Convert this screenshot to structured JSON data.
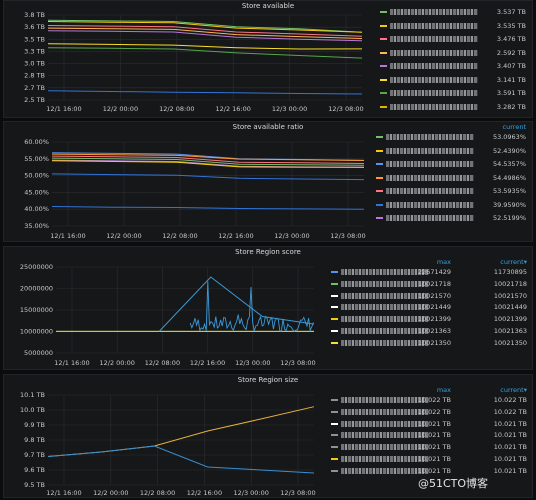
{
  "panels": [
    {
      "title": "Store available",
      "y_ticks": [
        "3.8 TB",
        "3.6 TB",
        "3.5 TB",
        "3.3 TB",
        "3.0 TB",
        "2.8 TB",
        "2.7 TB",
        "2.5 TB"
      ],
      "x_ticks": [
        "12/1 16:00",
        "12/2 00:00",
        "12/2 08:00",
        "12/2 16:00",
        "12/3 00:00",
        "12/3 08:00"
      ],
      "legend_header": [],
      "legend": [
        {
          "color": "#73bf69",
          "values": [
            "3.537 TB"
          ]
        },
        {
          "color": "#f2cc0c",
          "values": [
            "3.535 TB"
          ]
        },
        {
          "color": "#ff7383",
          "values": [
            "3.476 TB"
          ]
        },
        {
          "color": "#ffb357",
          "values": [
            "2.592 TB"
          ]
        },
        {
          "color": "#b877d9",
          "values": [
            "3.407 TB"
          ]
        },
        {
          "color": "#fade2a",
          "values": [
            "3.141 TB"
          ]
        },
        {
          "color": "#56a64b",
          "values": [
            "3.591 TB"
          ]
        },
        {
          "color": "#e0b400",
          "values": [
            "3.282 TB"
          ]
        }
      ]
    },
    {
      "title": "Store available ratio",
      "y_ticks": [
        "60.00%",
        "55.00%",
        "50.00%",
        "45.00%",
        "40.00%",
        "35.00%"
      ],
      "x_ticks": [
        "12/1 16:00",
        "12/2 00:00",
        "12/2 08:00",
        "12/2 16:00",
        "12/3 00:00",
        "12/3 08:00"
      ],
      "legend_header": [
        "current"
      ],
      "legend": [
        {
          "color": "#73bf69",
          "values": [
            "53.0963%"
          ]
        },
        {
          "color": "#f2cc0c",
          "values": [
            "52.4390%"
          ]
        },
        {
          "color": "#5794f2",
          "values": [
            "54.5357%"
          ]
        },
        {
          "color": "#ff9830",
          "values": [
            "54.4986%"
          ]
        },
        {
          "color": "#ff7383",
          "values": [
            "53.5935%"
          ]
        },
        {
          "color": "#3274d9",
          "values": [
            "39.9590%"
          ]
        },
        {
          "color": "#b877d9",
          "values": [
            "52.5199%"
          ]
        }
      ]
    },
    {
      "title": "Store Region score",
      "y_ticks": [
        "25000000",
        "20000000",
        "15000000",
        "10000000",
        "5000000"
      ],
      "x_ticks": [
        "12/1 16:00",
        "12/2 00:00",
        "12/2 08:00",
        "12/2 16:00",
        "12/3 00:00",
        "12/3 08:00"
      ],
      "legend_header": [
        "max",
        "current▾"
      ],
      "legend": [
        {
          "color": "#5794f2",
          "values": [
            "22671429",
            "11730895"
          ]
        },
        {
          "color": "#73bf69",
          "values": [
            "10021718",
            "10021718"
          ]
        },
        {
          "color": "#ffffff",
          "values": [
            "10021570",
            "10021570"
          ]
        },
        {
          "color": "#ffffff",
          "values": [
            "10021449",
            "10021449"
          ]
        },
        {
          "color": "#f2cc0c",
          "values": [
            "10021399",
            "10021399"
          ]
        },
        {
          "color": "#ffffff",
          "values": [
            "10021363",
            "10021363"
          ]
        },
        {
          "color": "#fade2a",
          "values": [
            "10021350",
            "10021350"
          ]
        }
      ]
    },
    {
      "title": "Store Region size",
      "y_ticks": [
        "10.1 TB",
        "10.0 TB",
        "9.9 TB",
        "9.8 TB",
        "9.7 TB",
        "9.6 TB",
        "9.5 TB"
      ],
      "x_ticks": [
        "12/1 16:00",
        "12/2 00:00",
        "12/2 08:00",
        "12/2 16:00",
        "12/3 00:00",
        "12/3 08:00"
      ],
      "legend_header": [
        "max",
        "current▾"
      ],
      "legend": [
        {
          "color": "#8f9295",
          "values": [
            "10.022 TB",
            "10.022 TB"
          ]
        },
        {
          "color": "#8f9295",
          "values": [
            "10.022 TB",
            "10.022 TB"
          ]
        },
        {
          "color": "#ffffff",
          "values": [
            "10.021 TB",
            "10.021 TB"
          ]
        },
        {
          "color": "#8f9295",
          "values": [
            "10.021 TB",
            "10.021 TB"
          ]
        },
        {
          "color": "#8f9295",
          "values": [
            "10.021 TB",
            "10.021 TB"
          ]
        },
        {
          "color": "#f2cc0c",
          "values": [
            "10.021 TB",
            "10.021 TB"
          ]
        },
        {
          "color": "#8f9295",
          "values": [
            "10.021 TB",
            "10.021 TB"
          ]
        }
      ]
    }
  ],
  "watermark": "@51CTO博客",
  "chart_data": [
    {
      "type": "line",
      "title": "Store available",
      "x": [
        "12/1 16:00",
        "12/2 00:00",
        "12/2 08:00",
        "12/2 16:00",
        "12/3 00:00",
        "12/3 08:00"
      ],
      "ylim": [
        2.5,
        3.8
      ],
      "series": [
        {
          "values": [
            3.72,
            3.71,
            3.7,
            3.62,
            3.59,
            3.537
          ]
        },
        {
          "values": [
            3.7,
            3.69,
            3.68,
            3.6,
            3.57,
            3.535
          ]
        },
        {
          "values": [
            3.64,
            3.63,
            3.62,
            3.54,
            3.51,
            3.476
          ]
        },
        {
          "values": [
            3.6,
            3.59,
            3.58,
            3.5,
            3.47,
            3.44
          ]
        },
        {
          "values": [
            3.56,
            3.55,
            3.54,
            3.46,
            3.43,
            3.407
          ]
        },
        {
          "values": [
            3.36,
            3.35,
            3.34,
            3.3,
            3.28,
            3.282
          ]
        },
        {
          "values": [
            3.3,
            3.29,
            3.28,
            3.22,
            3.18,
            3.141
          ]
        },
        {
          "values": [
            2.64,
            2.63,
            2.62,
            2.61,
            2.6,
            2.592
          ]
        }
      ]
    },
    {
      "type": "line",
      "title": "Store available ratio",
      "x": [
        "12/1 16:00",
        "12/2 00:00",
        "12/2 08:00",
        "12/2 16:00",
        "12/3 00:00",
        "12/3 08:00"
      ],
      "ylim": [
        35,
        60
      ],
      "series": [
        {
          "values": [
            56.8,
            56.6,
            56.4,
            55.0,
            54.8,
            54.5357
          ]
        },
        {
          "values": [
            56.4,
            56.2,
            56.0,
            54.9,
            54.7,
            54.4986
          ]
        },
        {
          "values": [
            55.8,
            55.6,
            55.4,
            54.0,
            53.8,
            53.5935
          ]
        },
        {
          "values": [
            55.2,
            55.0,
            54.8,
            53.4,
            53.2,
            53.0963
          ]
        },
        {
          "values": [
            54.6,
            54.4,
            54.2,
            52.8,
            52.6,
            52.5199
          ]
        },
        {
          "values": [
            54.4,
            54.2,
            54.0,
            52.6,
            52.5,
            52.439
          ]
        },
        {
          "values": [
            50.5,
            50.3,
            50.1,
            49.2,
            49.0,
            48.8
          ]
        },
        {
          "values": [
            40.8,
            40.6,
            40.5,
            40.2,
            40.1,
            39.959
          ]
        }
      ]
    },
    {
      "type": "line",
      "title": "Store Region score",
      "x": [
        "12/1 16:00",
        "12/2 00:00",
        "12/2 08:00",
        "12/2 16:00",
        "12/3 00:00",
        "12/3 08:00"
      ],
      "ylim": [
        5000000,
        25000000
      ],
      "series": [
        {
          "values": [
            10021718,
            10021718,
            10021718,
            10021718,
            10021718,
            10021718
          ]
        },
        {
          "values": [
            10021350,
            10021350,
            10021350,
            10021350,
            10021350,
            10021350
          ]
        },
        {
          "values": [
            null,
            null,
            10021360,
            22671429,
            13500000,
            11730895
          ]
        }
      ]
    },
    {
      "type": "line",
      "title": "Store Region size",
      "x": [
        "12/1 16:00",
        "12/2 00:00",
        "12/2 08:00",
        "12/2 16:00",
        "12/3 00:00",
        "12/3 08:00"
      ],
      "ylim": [
        9.5,
        10.1
      ],
      "series": [
        {
          "values": [
            9.69,
            9.72,
            9.76,
            9.86,
            9.94,
            10.022
          ]
        },
        {
          "values": [
            9.69,
            9.72,
            9.76,
            9.62,
            9.6,
            9.58
          ]
        }
      ]
    }
  ]
}
